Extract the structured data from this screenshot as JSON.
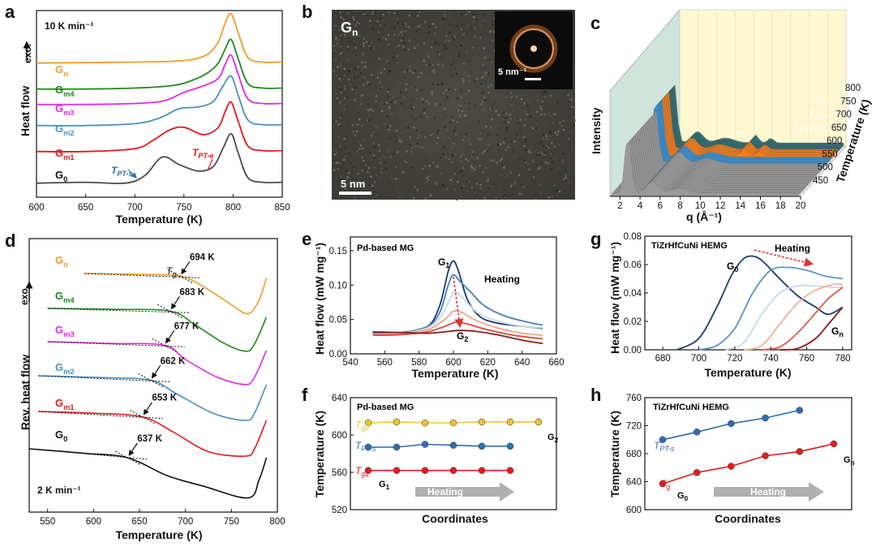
{
  "panels": {
    "a": {
      "label": "a",
      "rate": "10 K min⁻¹",
      "xlabel": "Temperature (K)",
      "ylabel": "Heat flow",
      "exo": "exo.",
      "xticks": [
        "600",
        "650",
        "700",
        "750",
        "800",
        "850"
      ],
      "ann_tpts": "T",
      "ann_tpts_sub": "PT-s",
      "ann_tpte": "T",
      "ann_tpte_sub": "PT-e"
    },
    "b": {
      "label": "b",
      "title": "G",
      "title_sub": "n",
      "scalebar": "5 nm",
      "inset_scalebar": "5 nm⁻¹"
    },
    "c": {
      "label": "c",
      "ylabel": "Intensity",
      "xlabel": "q (Å⁻¹)",
      "zlabel": "Temperature (K)",
      "xticks": [
        "2",
        "4",
        "6",
        "8",
        "10",
        "12",
        "14",
        "16",
        "18",
        "20"
      ],
      "zticks": [
        "450",
        "500",
        "550",
        "600",
        "650",
        "700",
        "750",
        "800"
      ],
      "ann_tpte": "T",
      "ann_tpte_sub": "PT-e",
      "ann_tpts": "T",
      "ann_tpts_sub": "PT-s",
      "ann_tg": "T",
      "ann_tg_sub": "g",
      "ann_tg_suffix": " of G",
      "ann_tg_suffix_sub": "0"
    },
    "d": {
      "label": "d",
      "rate": "2 K min⁻¹",
      "xlabel": "Temperature (K)",
      "ylabel": "Rev. heat flow",
      "exo": "exo.",
      "tg_label": "T",
      "tg_label_sub": "g",
      "xticks": [
        "550",
        "600",
        "650",
        "700",
        "750",
        "800"
      ]
    },
    "e": {
      "label": "e",
      "title": "Pd-based MG",
      "xlabel": "Temperature (K)",
      "ylabel": "Heat flow (mW mg⁻¹)",
      "heating": "Heating",
      "g1": "G",
      "g1_sub": "1",
      "g2": "G",
      "g2_sub": "2",
      "xticks": [
        "540",
        "560",
        "580",
        "600",
        "620",
        "640",
        "660"
      ],
      "yticks": [
        "0.00",
        "0.05",
        "0.10",
        "0.15"
      ]
    },
    "f": {
      "label": "f",
      "title": "Pd-based MG",
      "xlabel": "Coordinates",
      "ylabel": "Temperature (K)",
      "heating": "Heating",
      "g1": "G",
      "g1_sub": "1",
      "g2": "G",
      "g2_sub": "2",
      "yticks": [
        "520",
        "560",
        "600",
        "640"
      ]
    },
    "g": {
      "label": "g",
      "title": "TiZrHfCuNi HEMG",
      "xlabel": "Temperature (K)",
      "ylabel": "Heat flow (mW mg⁻¹)",
      "heating": "Heating",
      "g0": "G",
      "g0_sub": "0",
      "gn": "G",
      "gn_sub": "n",
      "xticks": [
        "680",
        "700",
        "720",
        "740",
        "760",
        "780"
      ],
      "yticks": [
        "0.00",
        "0.02",
        "0.04",
        "0.06",
        "0.08"
      ]
    },
    "h": {
      "label": "h",
      "title": "TiZrHfCuNi HEMG",
      "xlabel": "Coordinates",
      "ylabel": "Temperature (K)",
      "heating": "Heating",
      "g0": "G",
      "g0_sub": "0",
      "gn": "G",
      "gn_sub": "n",
      "yticks": [
        "600",
        "640",
        "680",
        "720",
        "760"
      ]
    }
  },
  "colors": {
    "G0": "#4a4a4a",
    "Gm1": "#e31a1c",
    "Gm2": "#4a90c2",
    "Gm3": "#e52ae5",
    "Gm4": "#1f8a1f",
    "Gn": "#f39c2c",
    "tg2": "#f2c230",
    "tpts": "#2f6db0",
    "tg1": "#e41a1c",
    "arrow": "#b0b0b0",
    "heatarrow": "#e03030"
  },
  "chart_data": [
    {
      "panel": "a",
      "type": "line",
      "title": "",
      "xlabel": "Temperature (K)",
      "ylabel": "Heat flow",
      "xlim": [
        600,
        850
      ],
      "series": [
        {
          "name": "G",
          "sub": "n",
          "key": "Gn",
          "x": [
            600,
            650,
            700,
            740,
            760,
            775,
            785,
            792,
            798,
            805,
            815,
            830,
            850
          ],
          "y": [
            0.02,
            0.025,
            0.03,
            0.04,
            0.06,
            0.12,
            0.25,
            0.45,
            0.55,
            0.35,
            0.08,
            0.03,
            0.03
          ]
        },
        {
          "name": "G",
          "sub": "m4",
          "key": "Gm4",
          "x": [
            600,
            650,
            700,
            740,
            760,
            775,
            785,
            792,
            798,
            805,
            815,
            830,
            850
          ],
          "y": [
            0.02,
            0.02,
            0.03,
            0.06,
            0.12,
            0.2,
            0.3,
            0.45,
            0.55,
            0.35,
            0.08,
            0.03,
            0.03
          ]
        },
        {
          "name": "G",
          "sub": "m3",
          "key": "Gm3",
          "x": [
            600,
            650,
            700,
            730,
            750,
            770,
            785,
            792,
            798,
            805,
            815,
            830,
            850
          ],
          "y": [
            0.02,
            0.02,
            0.03,
            0.06,
            0.15,
            0.22,
            0.3,
            0.45,
            0.55,
            0.35,
            0.08,
            0.03,
            0.03
          ]
        },
        {
          "name": "G",
          "sub": "m2",
          "key": "Gm2",
          "x": [
            600,
            650,
            700,
            725,
            745,
            765,
            780,
            790,
            798,
            805,
            815,
            830,
            850
          ],
          "y": [
            0.02,
            0.02,
            0.04,
            0.1,
            0.2,
            0.22,
            0.28,
            0.45,
            0.55,
            0.35,
            0.08,
            0.03,
            0.03
          ]
        },
        {
          "name": "G",
          "sub": "m1",
          "key": "Gm1",
          "x": [
            600,
            650,
            700,
            720,
            735,
            750,
            770,
            785,
            792,
            798,
            805,
            815,
            830,
            850
          ],
          "y": [
            0.02,
            0.02,
            0.05,
            0.15,
            0.25,
            0.28,
            0.2,
            0.28,
            0.45,
            0.55,
            0.35,
            0.08,
            0.03,
            0.03
          ]
        },
        {
          "name": "G",
          "sub": "0",
          "key": "G0",
          "x": [
            600,
            650,
            690,
            710,
            728,
            745,
            765,
            780,
            790,
            798,
            805,
            815,
            830,
            850
          ],
          "y": [
            0.02,
            0.03,
            0.02,
            0.1,
            0.3,
            0.22,
            0.15,
            0.2,
            0.4,
            0.55,
            0.35,
            0.08,
            0.03,
            0.03
          ]
        }
      ]
    },
    {
      "panel": "d",
      "type": "line",
      "title": "",
      "xlabel": "Temperature (K)",
      "ylabel": "Rev. heat flow",
      "xlim": [
        530,
        800
      ],
      "series": [
        {
          "name": "G",
          "sub": "n",
          "key": "Gn",
          "x": [
            590,
            650,
            694,
            720,
            750,
            768,
            780,
            788
          ],
          "y": [
            0.0,
            -0.01,
            -0.03,
            -0.15,
            -0.35,
            -0.45,
            -0.3,
            -0.05
          ],
          "tg": 694
        },
        {
          "name": "G",
          "sub": "m4",
          "key": "Gm4",
          "x": [
            550,
            620,
            683,
            710,
            740,
            765,
            775,
            788
          ],
          "y": [
            0.0,
            -0.01,
            -0.03,
            -0.18,
            -0.38,
            -0.48,
            -0.4,
            -0.1
          ],
          "tg": 683
        },
        {
          "name": "G",
          "sub": "m3",
          "key": "Gm3",
          "x": [
            550,
            620,
            677,
            700,
            735,
            765,
            775,
            788
          ],
          "y": [
            0.0,
            -0.02,
            -0.04,
            -0.2,
            -0.4,
            -0.48,
            -0.4,
            -0.1
          ],
          "tg": 677
        },
        {
          "name": "G",
          "sub": "m2",
          "key": "Gm2",
          "x": [
            540,
            610,
            662,
            690,
            730,
            765,
            775,
            788
          ],
          "y": [
            0.0,
            -0.02,
            -0.05,
            -0.2,
            -0.42,
            -0.5,
            -0.42,
            -0.1
          ],
          "tg": 662
        },
        {
          "name": "G",
          "sub": "m1",
          "key": "Gm1",
          "x": [
            540,
            600,
            653,
            685,
            725,
            765,
            775,
            788
          ],
          "y": [
            0.0,
            -0.02,
            -0.06,
            -0.22,
            -0.45,
            -0.5,
            -0.42,
            -0.1
          ],
          "tg": 653
        },
        {
          "name": "G",
          "sub": "0",
          "key": "G0",
          "x": [
            530,
            590,
            637,
            680,
            720,
            768,
            780,
            788
          ],
          "y": [
            0.0,
            -0.05,
            -0.1,
            -0.3,
            -0.42,
            -0.55,
            -0.35,
            -0.1
          ],
          "tg": 637
        }
      ],
      "tg_values": [
        "694 K",
        "683 K",
        "677 K",
        "662 K",
        "653 K",
        "637 K"
      ]
    },
    {
      "panel": "e",
      "type": "line",
      "title": "Pd-based MG",
      "xlabel": "Temperature (K)",
      "ylabel": "Heat flow (mW mg⁻¹)",
      "xlim": [
        540,
        660
      ],
      "ylim": [
        0,
        0.17
      ],
      "series": [
        {
          "color": "#1d3a6b",
          "x": [
            553,
            570,
            585,
            592,
            597,
            600,
            603,
            608,
            615,
            625,
            640,
            652
          ],
          "y": [
            0.03,
            0.031,
            0.04,
            0.07,
            0.12,
            0.135,
            0.12,
            0.08,
            0.055,
            0.045,
            0.04,
            0.037
          ]
        },
        {
          "color": "#4a7fb5",
          "x": [
            553,
            570,
            585,
            592,
            597,
            600,
            604,
            610,
            618,
            630,
            645,
            652
          ],
          "y": [
            0.03,
            0.031,
            0.04,
            0.06,
            0.1,
            0.115,
            0.105,
            0.09,
            0.07,
            0.055,
            0.045,
            0.042
          ]
        },
        {
          "color": "#c7d9ec",
          "x": [
            553,
            570,
            585,
            593,
            598,
            601,
            606,
            614,
            625,
            640,
            652
          ],
          "y": [
            0.028,
            0.03,
            0.038,
            0.055,
            0.08,
            0.09,
            0.08,
            0.06,
            0.048,
            0.04,
            0.038
          ]
        },
        {
          "color": "#f0a48a",
          "x": [
            553,
            570,
            585,
            595,
            600,
            605,
            612,
            625,
            640,
            652
          ],
          "y": [
            0.028,
            0.03,
            0.035,
            0.05,
            0.062,
            0.06,
            0.05,
            0.038,
            0.03,
            0.027
          ]
        },
        {
          "color": "#d84a3a",
          "x": [
            553,
            570,
            585,
            595,
            602,
            610,
            620,
            635,
            652
          ],
          "y": [
            0.027,
            0.028,
            0.032,
            0.04,
            0.046,
            0.042,
            0.035,
            0.027,
            0.022
          ]
        },
        {
          "color": "#8a1c1c",
          "x": [
            553,
            570,
            585,
            595,
            603,
            612,
            625,
            640,
            652
          ],
          "y": [
            0.032,
            0.031,
            0.03,
            0.032,
            0.034,
            0.033,
            0.028,
            0.02,
            0.015
          ]
        }
      ]
    },
    {
      "panel": "g",
      "type": "line",
      "title": "TiZrHfCuNi HEMG",
      "xlabel": "Temperature (K)",
      "ylabel": "Heat flow (mW mg⁻¹)",
      "xlim": [
        670,
        785
      ],
      "ylim": [
        0,
        0.08
      ],
      "series": [
        {
          "color": "#1d3a6b",
          "x": [
            688,
            700,
            710,
            718,
            724,
            729,
            735,
            745,
            755,
            765,
            772,
            780
          ],
          "y": [
            0.0,
            0.008,
            0.03,
            0.052,
            0.063,
            0.066,
            0.063,
            0.05,
            0.038,
            0.03,
            0.025,
            0.03
          ]
        },
        {
          "color": "#5b93c7",
          "x": [
            700,
            710,
            720,
            730,
            740,
            750,
            760,
            770,
            780
          ],
          "y": [
            0.0,
            0.003,
            0.015,
            0.04,
            0.056,
            0.058,
            0.056,
            0.052,
            0.05
          ]
        },
        {
          "color": "#c7d9ec",
          "x": [
            715,
            725,
            735,
            745,
            755,
            765,
            775,
            780
          ],
          "y": [
            0.0,
            0.005,
            0.025,
            0.04,
            0.045,
            0.045,
            0.044,
            0.044
          ]
        },
        {
          "color": "#f0b09a",
          "x": [
            725,
            735,
            745,
            755,
            765,
            775,
            780
          ],
          "y": [
            0.0,
            0.003,
            0.018,
            0.033,
            0.042,
            0.046,
            0.046
          ]
        },
        {
          "color": "#de5a48",
          "x": [
            735,
            745,
            755,
            765,
            772,
            780
          ],
          "y": [
            0.0,
            0.002,
            0.012,
            0.026,
            0.036,
            0.044
          ]
        },
        {
          "color": "#8a1c1c",
          "x": [
            745,
            755,
            765,
            772,
            780
          ],
          "y": [
            0.0,
            0.001,
            0.008,
            0.018,
            0.03
          ]
        }
      ]
    },
    {
      "panel": "f",
      "type": "line",
      "title": "Pd-based MG",
      "xlabel": "Coordinates",
      "ylabel": "Temperature (K)",
      "ylim": [
        520,
        640
      ],
      "x": [
        1,
        2,
        3,
        4,
        5,
        6,
        7
      ],
      "series": [
        {
          "name": "T",
          "sub": "g2",
          "key": "tg2",
          "values": [
            613,
            614,
            613,
            613,
            614,
            614,
            614
          ]
        },
        {
          "name": "T",
          "sub": "PT-s",
          "key": "tpts",
          "values": [
            587,
            587,
            590,
            589,
            588,
            588,
            null
          ]
        },
        {
          "name": "T",
          "sub": "g1",
          "key": "tg1",
          "values": [
            562,
            562,
            562,
            562,
            562,
            562,
            null
          ]
        }
      ]
    },
    {
      "panel": "h",
      "type": "line",
      "title": "TiZrHfCuNi HEMG",
      "xlabel": "Coordinates",
      "ylabel": "Temperature (K)",
      "ylim": [
        600,
        760
      ],
      "x": [
        1,
        2,
        3,
        4,
        5,
        6
      ],
      "series": [
        {
          "name": "T",
          "sub": "PT-s",
          "key": "tpts",
          "values": [
            700,
            711,
            723,
            731,
            742,
            null
          ]
        },
        {
          "name": "T",
          "sub": "g",
          "key": "tg1",
          "values": [
            637,
            653,
            662,
            677,
            683,
            694
          ]
        }
      ]
    },
    {
      "panel": "c",
      "type": "area",
      "title": "",
      "xlabel": "q (Å⁻¹)",
      "ylabel": "Intensity",
      "zlabel": "Temperature (K)",
      "xlim": [
        1,
        20
      ],
      "zlim": [
        430,
        810
      ]
    }
  ]
}
